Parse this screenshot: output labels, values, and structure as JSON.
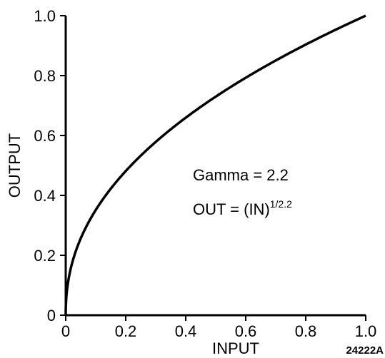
{
  "chart_data": {
    "type": "line",
    "xlabel": "INPUT",
    "ylabel": "OUTPUT",
    "xlim": [
      0,
      1.0
    ],
    "ylim": [
      0,
      1.0
    ],
    "x_ticks": [
      "0",
      "0.2",
      "0.4",
      "0.6",
      "0.8",
      "1.0"
    ],
    "y_ticks": [
      "0",
      "0.2",
      "0.4",
      "0.6",
      "0.8",
      "1.0"
    ],
    "grid": false,
    "gamma": 2.2,
    "series": [
      {
        "x": [
          0,
          0.05,
          0.1,
          0.2,
          0.3,
          0.4,
          0.5,
          0.6,
          0.7,
          0.8,
          0.9,
          1.0
        ],
        "y": [
          0,
          0.256,
          0.351,
          0.481,
          0.579,
          0.659,
          0.73,
          0.793,
          0.85,
          0.904,
          0.953,
          1.0
        ]
      }
    ],
    "annotations": {
      "gamma_line": "Gamma = 2.2",
      "formula_main": "OUT = (IN)",
      "formula_exponent": "1/2.2"
    },
    "figure_id": "24222A"
  }
}
